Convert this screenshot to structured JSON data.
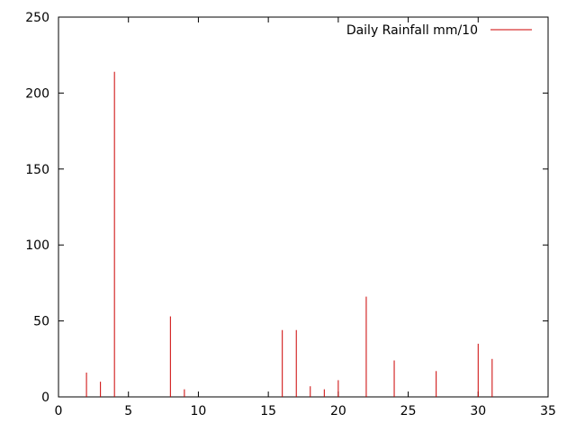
{
  "chart_data": {
    "type": "bar",
    "title": "",
    "xlabel": "",
    "ylabel": "",
    "xlim": [
      0,
      35
    ],
    "ylim": [
      0,
      250
    ],
    "xticks": [
      0,
      5,
      10,
      15,
      20,
      25,
      30,
      35
    ],
    "yticks": [
      0,
      50,
      100,
      150,
      200,
      250
    ],
    "grid": false,
    "legend": "top-right",
    "series": [
      {
        "name": "Daily Rainfall mm/10",
        "color": "#cc0000",
        "x": [
          2,
          3,
          4,
          8,
          9,
          16,
          17,
          18,
          19,
          20,
          22,
          24,
          27,
          30,
          31
        ],
        "values": [
          16,
          10,
          214,
          53,
          5,
          44,
          44,
          7,
          5,
          11,
          66,
          24,
          17,
          35,
          25
        ]
      }
    ]
  }
}
